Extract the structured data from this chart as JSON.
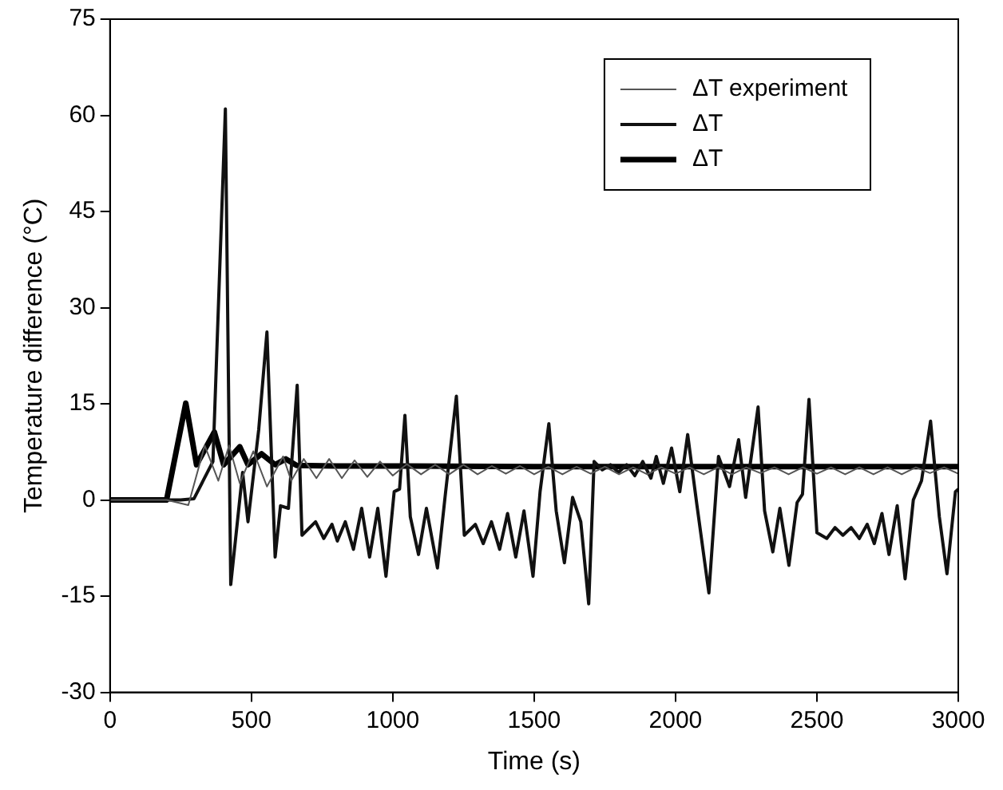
{
  "chart_data": {
    "type": "line",
    "xlabel": "Time (s)",
    "ylabel": "Temperature difference (°C)",
    "xlim": [
      0,
      3000
    ],
    "xticks": [
      0,
      500,
      1000,
      1500,
      2000,
      2500,
      3000
    ],
    "ylim": [
      -30,
      75
    ],
    "yticks": [
      -30,
      -15,
      0,
      15,
      30,
      45,
      60,
      75
    ],
    "grid": false,
    "legend": "top right",
    "marker": "none",
    "line_style": "solid",
    "series": [
      {
        "name": "ΔT experiment",
        "color": "#555555",
        "x": [
          0,
          200,
          277,
          335,
          383,
          421,
          459,
          507,
          555,
          612,
          641,
          685,
          730,
          775,
          820,
          865,
          910,
          955,
          1000,
          1050,
          1100,
          1150,
          1200,
          1250,
          1300,
          1350,
          1400,
          1450,
          1500,
          1550,
          1600,
          1650,
          1700,
          1750,
          1800,
          1850,
          1900,
          1950,
          2000,
          2050,
          2100,
          2150,
          2200,
          2250,
          2300,
          2350,
          2400,
          2450,
          2500,
          2550,
          2600,
          2650,
          2700,
          2750,
          2800,
          2850,
          2900,
          2950,
          3000
        ],
        "values": [
          0,
          0,
          -0.8,
          8.5,
          3,
          8.5,
          2.6,
          7.6,
          2.1,
          6.8,
          3,
          6.4,
          3.4,
          6.4,
          3.4,
          6.2,
          3.6,
          6,
          3.8,
          5.6,
          4,
          5.5,
          4,
          5.5,
          4,
          5.3,
          4.1,
          5.3,
          4,
          5.2,
          4,
          5.2,
          4.1,
          5.2,
          4,
          5.1,
          4,
          5.1,
          4.1,
          5.1,
          4,
          5.1,
          4,
          5.1,
          4.2,
          5.1,
          4,
          5.1,
          4.1,
          5.1,
          4,
          5.1,
          4,
          5.1,
          4,
          5.1,
          4.2,
          5.1,
          4.1
        ]
      },
      {
        "name": "ΔT",
        "color": "#111111",
        "x": [
          0,
          250,
          297,
          364,
          408,
          427,
          469,
          488,
          526,
          555,
          584,
          603,
          631,
          662,
          679,
          727,
          756,
          785,
          804,
          832,
          861,
          890,
          918,
          947,
          976,
          1005,
          1024,
          1043,
          1062,
          1091,
          1119,
          1158,
          1186,
          1225,
          1253,
          1292,
          1320,
          1349,
          1378,
          1406,
          1435,
          1464,
          1496,
          1521,
          1552,
          1578,
          1607,
          1636,
          1665,
          1693,
          1712,
          1741,
          1770,
          1798,
          1827,
          1856,
          1884,
          1913,
          1932,
          1957,
          1986,
          2015,
          2043,
          2076,
          2118,
          2152,
          2191,
          2223,
          2248,
          2292,
          2315,
          2344,
          2369,
          2401,
          2430,
          2449,
          2472,
          2500,
          2535,
          2564,
          2592,
          2621,
          2650,
          2678,
          2703,
          2730,
          2755,
          2784,
          2812,
          2841,
          2870,
          2902,
          2933,
          2960,
          2990,
          3000
        ],
        "values": [
          0,
          0,
          0.2,
          6,
          61,
          -13.2,
          4.3,
          -3.4,
          11,
          26.2,
          -8.9,
          -0.9,
          -1.3,
          17.9,
          -5.5,
          -3.4,
          -6,
          -3.8,
          -6.4,
          -3.4,
          -7.7,
          -1.3,
          -8.9,
          -1.3,
          -11.9,
          1.3,
          1.7,
          13.2,
          -2.6,
          -8.5,
          -1.3,
          -10.6,
          0.9,
          16.2,
          -5.5,
          -3.8,
          -6.8,
          -3.4,
          -7.7,
          -2.1,
          -8.9,
          -1.7,
          -11.9,
          1.3,
          11.9,
          -1.7,
          -9.8,
          0.4,
          -3.4,
          -16.2,
          6,
          4.7,
          5.5,
          4.3,
          5.5,
          3.8,
          6,
          3.4,
          6.8,
          2.6,
          8.1,
          1.3,
          10.2,
          -0.9,
          -14.5,
          6.8,
          2.1,
          9.4,
          0.4,
          14.5,
          -1.7,
          -8.1,
          -1.3,
          -10.2,
          -0.4,
          0.9,
          15.7,
          -5.1,
          -6,
          -4.3,
          -5.5,
          -4.3,
          -6,
          -3.8,
          -6.8,
          -2.1,
          -8.5,
          -0.9,
          -12.3,
          0,
          3,
          12.3,
          -2.6,
          -11.5,
          1.3,
          1.7
        ]
      },
      {
        "name": "ΔT",
        "color": "#000000",
        "x": [
          0,
          200,
          268,
          306,
          369,
          402,
          459,
          488,
          536,
          584,
          622,
          660,
          800,
          1000,
          1500,
          2000,
          2500,
          3000
        ],
        "values": [
          0,
          0,
          15.1,
          5.5,
          10.6,
          5.5,
          8.3,
          5.5,
          7.2,
          5.5,
          6.4,
          5.4,
          5.3,
          5.3,
          5.2,
          5.2,
          5.2,
          5.2
        ]
      }
    ]
  }
}
